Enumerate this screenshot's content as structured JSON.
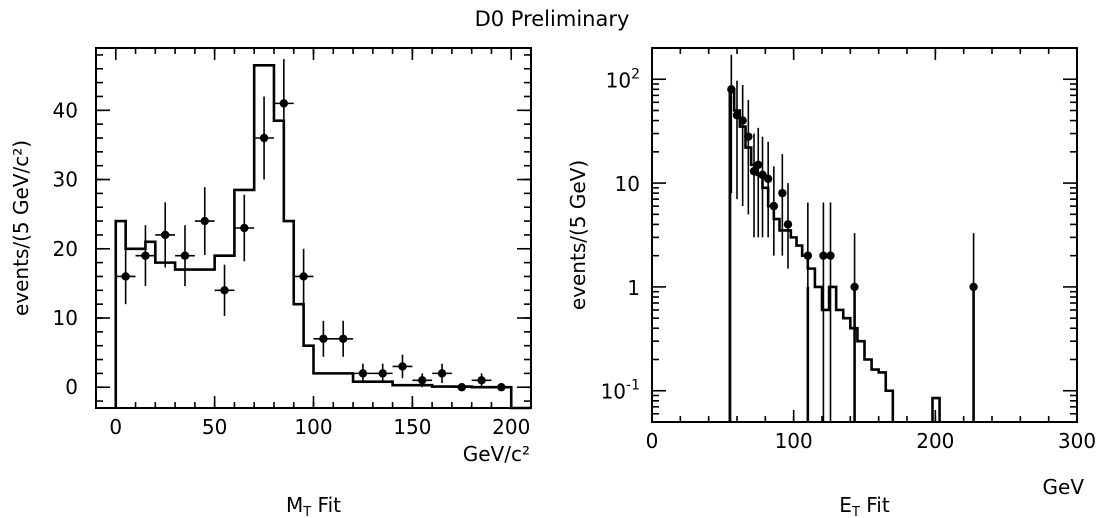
{
  "figure_title": "D0 Preliminary",
  "chart_data": [
    {
      "type": "bar",
      "title": "",
      "caption_main": "M",
      "caption_sub": "T",
      "caption_rest": " Fit",
      "ylabel": "events/(5 GeV/c²)",
      "xlabel": "GeV/c²",
      "xlim": [
        -10,
        210
      ],
      "ylim": [
        -3,
        49
      ],
      "scale": "linear",
      "xticks": [
        0,
        50,
        100,
        150,
        200
      ],
      "yticks": [
        0,
        10,
        20,
        30,
        40
      ],
      "series": [
        {
          "kind": "histogram",
          "edges": [
            0,
            5,
            15,
            20,
            30,
            40,
            50,
            60,
            70,
            80,
            85,
            90,
            95,
            100,
            120,
            140,
            160,
            180,
            200
          ],
          "values": [
            24,
            20,
            21,
            18,
            17,
            17,
            19,
            28.5,
            46.5,
            38.5,
            24,
            12,
            6,
            2,
            0.8,
            0.3,
            0.1,
            0
          ]
        },
        {
          "kind": "points",
          "x": [
            5,
            15,
            25,
            35,
            45,
            55,
            65,
            75,
            85,
            95,
            105,
            115,
            125,
            135,
            145,
            155,
            165,
            175,
            185,
            195
          ],
          "y": [
            16,
            19,
            22,
            19,
            24,
            14,
            23,
            36,
            41,
            16,
            7,
            7,
            2,
            2,
            3,
            1,
            2,
            0,
            1,
            0
          ],
          "err": [
            4,
            4.4,
            4.7,
            4.4,
            4.9,
            3.7,
            4.8,
            6,
            6.4,
            4,
            2.6,
            2.6,
            1.4,
            1.4,
            1.7,
            1,
            1.4,
            0,
            1,
            0
          ]
        }
      ]
    },
    {
      "type": "bar",
      "title": "",
      "caption_main": "E",
      "caption_sub": "T",
      "caption_rest": " Fit",
      "ylabel": "events/(5 GeV)",
      "xlabel": "GeV",
      "xlim": [
        0,
        300
      ],
      "ylim": [
        0.05,
        200
      ],
      "scale": "log",
      "xticks": [
        0,
        100,
        200,
        300
      ],
      "yticks": [
        {
          "value": 0.1,
          "base": "10",
          "exp": "-1"
        },
        {
          "value": 1,
          "base": "1",
          "exp": ""
        },
        {
          "value": 10,
          "base": "10",
          "exp": ""
        },
        {
          "value": 100,
          "base": "10",
          "exp": "2"
        }
      ],
      "series": [
        {
          "kind": "histogram",
          "edges": [
            55,
            58,
            62,
            66,
            70,
            74,
            78,
            82,
            86,
            90,
            94,
            98,
            102,
            106,
            110,
            115,
            120,
            125,
            130,
            135,
            140,
            145,
            150,
            155,
            160,
            165,
            170
          ],
          "values": [
            80,
            50,
            35,
            22,
            15,
            12,
            9,
            6,
            4.5,
            3.5,
            3.5,
            3,
            2.5,
            2,
            1.5,
            1,
            0.6,
            1,
            0.6,
            0.5,
            0.4,
            0.3,
            0.2,
            0.16,
            0.15,
            0.1
          ],
          "extra_bins": [
            {
              "x0": 198,
              "x1": 203,
              "value": 0.085
            }
          ]
        },
        {
          "kind": "points",
          "x": [
            56,
            60,
            64,
            68,
            72,
            75,
            78,
            82,
            86,
            92,
            96,
            110,
            121,
            126,
            143,
            227
          ],
          "y": [
            80,
            45,
            40,
            28,
            13,
            15,
            12,
            11,
            6,
            8,
            4,
            2,
            2,
            2,
            1,
            1
          ],
          "err_lo": [
            72,
            38,
            34,
            23,
            10,
            12,
            9,
            8,
            4,
            6,
            2.5,
            1.95,
            1.95,
            1.95,
            0.97,
            0.97
          ],
          "err_hi": [
            92,
            52,
            48,
            35,
            17,
            19,
            16,
            14,
            8.5,
            11,
            6,
            4.5,
            4.5,
            4.5,
            2.3,
            2.3
          ]
        }
      ],
      "spikes": [
        55,
        110,
        143,
        227
      ]
    }
  ]
}
